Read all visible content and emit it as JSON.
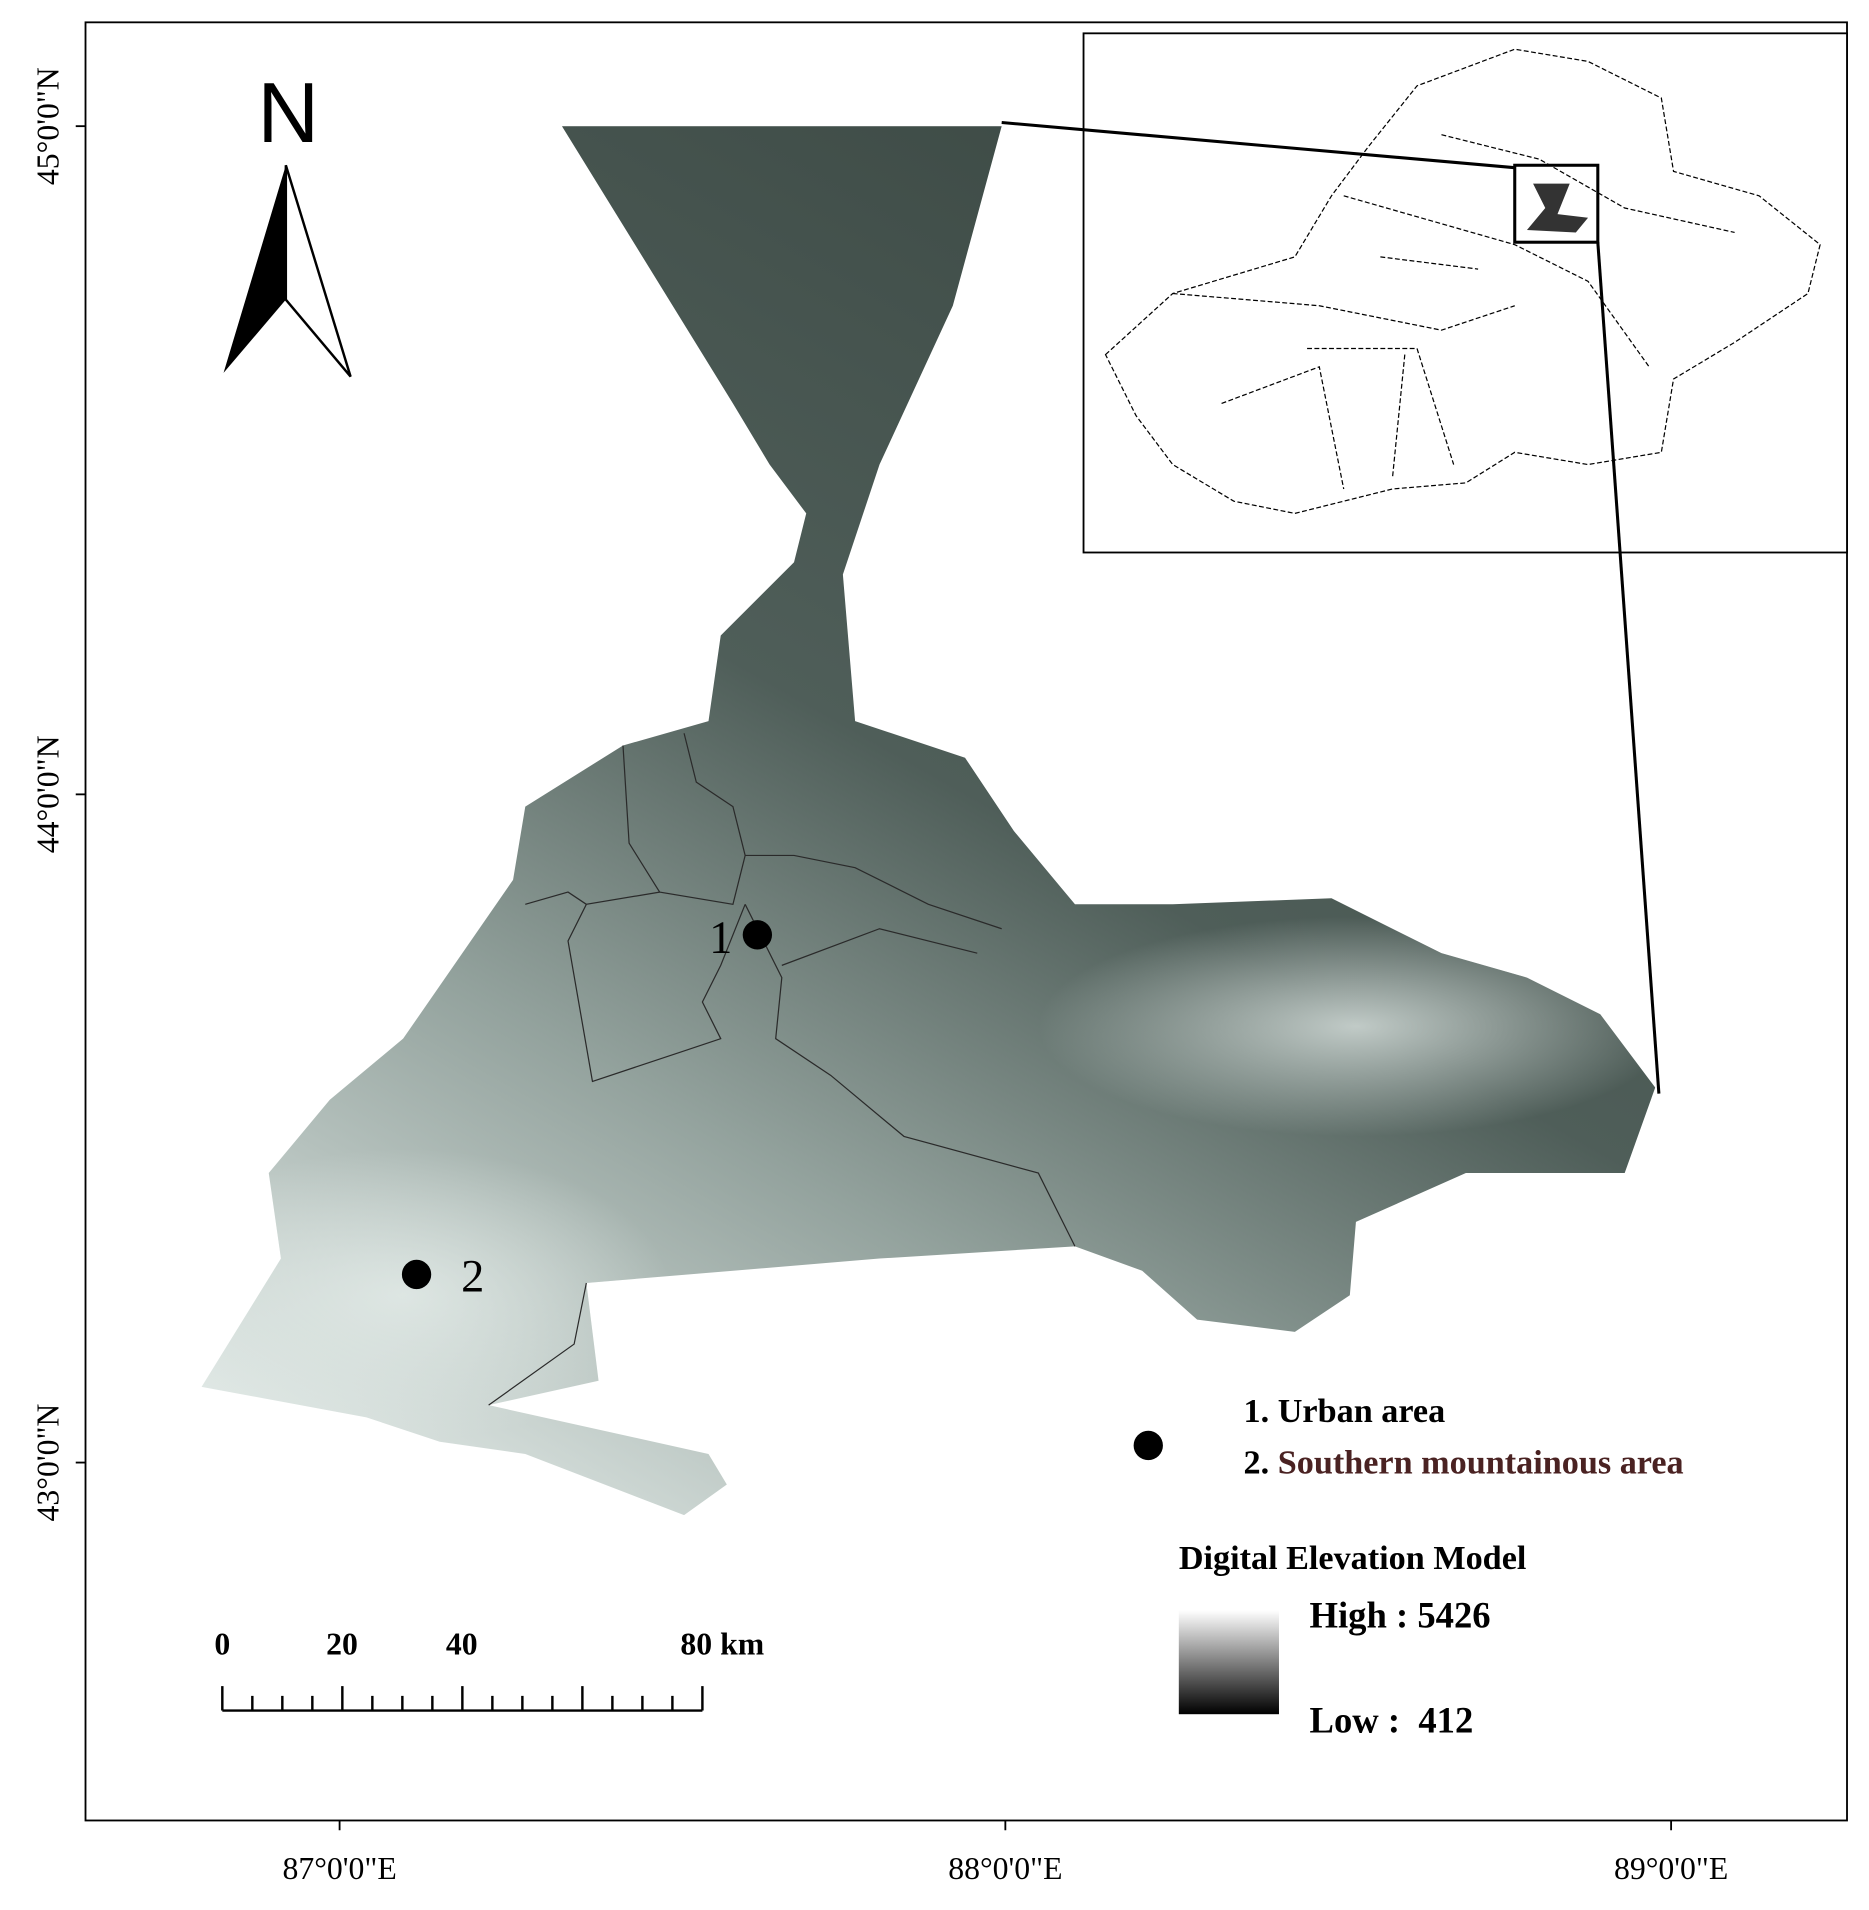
{
  "north_arrow": {
    "label": "N"
  },
  "latitude_labels": [
    "45°0'0\"N",
    "44°0'0\"N",
    "43°0'0\"N"
  ],
  "longitude_labels": [
    "87°0'0\"E",
    "88°0'0\"E",
    "89°0'0\"E"
  ],
  "sites": [
    {
      "label": "1"
    },
    {
      "label": "2"
    }
  ],
  "site_legend": [
    {
      "number": "1.",
      "label": "Urban area"
    },
    {
      "number": "2.",
      "label": "Southern mountainous area"
    }
  ],
  "elevation_legend": {
    "title": "Digital Elevation Model",
    "high": "High : 5426",
    "low": "Low :  412"
  },
  "scale_bar": {
    "labels": [
      "0",
      "20",
      "40",
      "80 km"
    ]
  }
}
